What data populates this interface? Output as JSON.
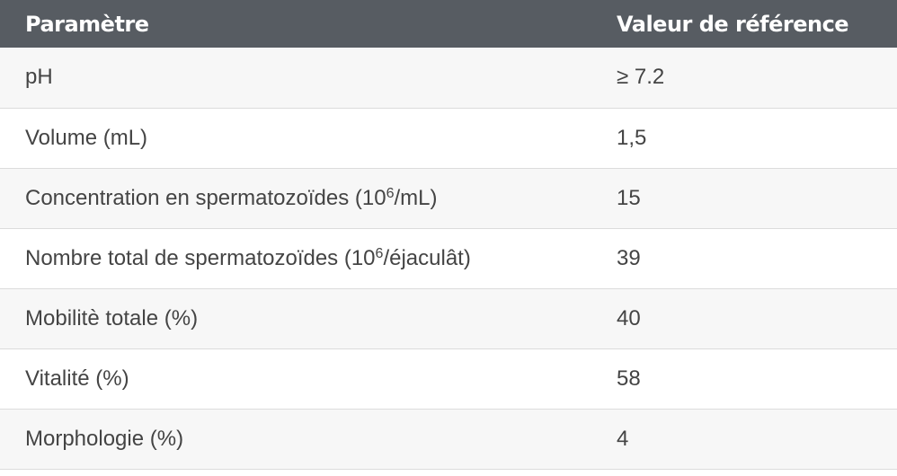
{
  "table": {
    "headers": [
      "Paramètre",
      "Valeur de référence"
    ],
    "rows": [
      {
        "param": "pH",
        "value": "≥ 7.2"
      },
      {
        "param": "Volume (mL)",
        "value": "1,5"
      },
      {
        "param_pre": "Concentration en spermatozoïdes (10",
        "param_sup": "6",
        "param_post": "/mL)",
        "value": "15"
      },
      {
        "param_pre": "Nombre total de spermatozoïdes (10",
        "param_sup": "6",
        "param_post": "/éjaculât)",
        "value": "39"
      },
      {
        "param": "Mobilitè totale (%)",
        "value": "40"
      },
      {
        "param": "Vitalité (%)",
        "value": "58"
      },
      {
        "param": "Morphologie (%)",
        "value": "4"
      }
    ]
  }
}
